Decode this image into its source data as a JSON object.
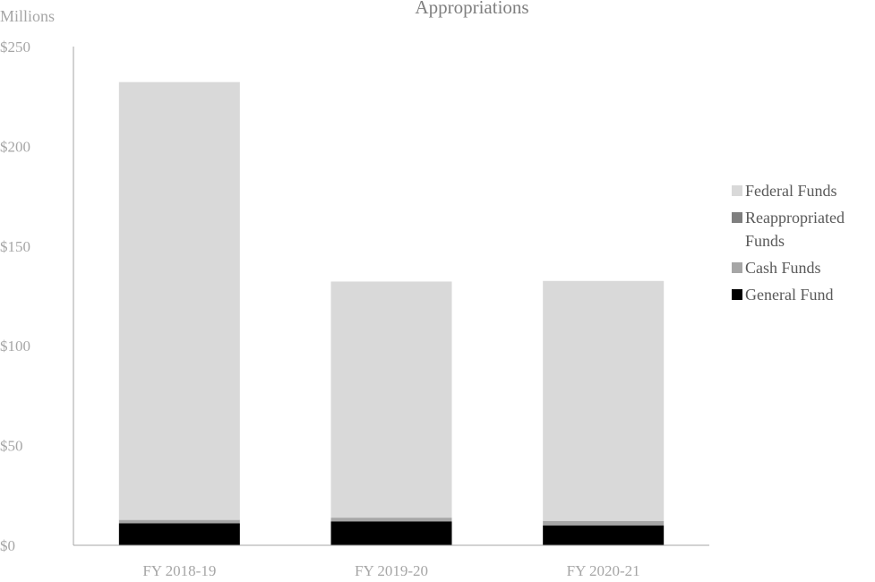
{
  "chart_data": {
    "type": "bar",
    "stacked": true,
    "title": "Appropriations",
    "units_label": "Millions",
    "categories": [
      "FY 2018-19",
      "FY 2019-20",
      "FY 2020-21"
    ],
    "y_ticks": [
      "$0",
      "$50",
      "$100",
      "$150",
      "$200",
      "$250"
    ],
    "ylim": [
      0,
      250
    ],
    "series": [
      {
        "name": "General Fund",
        "legend_label": "General Fund",
        "color": "#000000",
        "values": [
          11,
          12,
          10
        ]
      },
      {
        "name": "Cash Funds",
        "legend_label": "Cash Funds",
        "color": "#a6a6a6",
        "values": [
          1.5,
          1.5,
          2
        ]
      },
      {
        "name": "Reappropriated Funds",
        "legend_label": "Reappropriated Funds",
        "color": "#7f7f7f",
        "values": [
          0.2,
          0.2,
          0.2
        ]
      },
      {
        "name": "Federal Funds",
        "legend_label": "Federal Funds",
        "color": "#d9d9d9",
        "values": [
          219.5,
          118.5,
          120.3
        ]
      }
    ],
    "legend_order": [
      3,
      2,
      1,
      0
    ],
    "legend_position": "right",
    "grid": false
  }
}
